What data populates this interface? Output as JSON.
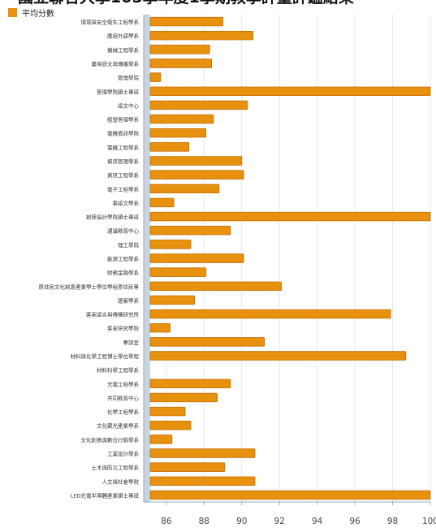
{
  "page": {
    "title": "國立聯合大學105學年度1學期教學評量評鑑結果"
  },
  "colors": {
    "bar_fill": "#E8910F",
    "bar_stroke": "#C06E05",
    "plot_background": "#C8D4DF",
    "grid": "#E3E8EE"
  },
  "chart_data": {
    "type": "bar",
    "orientation": "horizontal",
    "title": "國立聯合大學105學年度1學期教學評量評鑑結果",
    "xlim": [
      84.8,
      100
    ],
    "x_ticks": [
      "86",
      "88",
      "90",
      "92",
      "94",
      "96",
      "98",
      "100"
    ],
    "grid": true,
    "legend": {
      "position": "top-left",
      "entries": [
        "平均分數"
      ]
    },
    "series": [
      {
        "name": "平均分數",
        "categories": [
          "環境與安全衛生工程學系",
          "應用外語學系",
          "機械工程學系",
          "臺灣語文與傳播學系",
          "管理學院",
          "管理學院碩士專班",
          "語文中心",
          "經營管理學系",
          "電機資訊學院",
          "電機工程學系",
          "資訊管理學系",
          "資訊工程學系",
          "電子工程學系",
          "華語文學系",
          "創新設計學院碩士專班",
          "通識教育中心",
          "理工學院",
          "能源工程學系",
          "財務金融學系",
          "原住民文化創意產業學士學位學程原住民專",
          "建築學系",
          "客家語言與傳播研究所",
          "客家研究學院",
          "軍訓室",
          "材料與化學工程博士學位學程",
          "材料科學工程學系",
          "光電工程學系",
          "共同教育中心",
          "化學工程學系",
          "文化觀光產業學系",
          "文化創意與數位行銷學系",
          "工業設計學系",
          "土木與防災工程學系",
          "人文與社會學院",
          "LED光電半導體產業碩士專班"
        ],
        "values": [
          89.0,
          90.6,
          88.3,
          88.4,
          85.7,
          100,
          90.3,
          88.5,
          88.1,
          87.2,
          90.0,
          90.1,
          88.8,
          86.4,
          100,
          89.4,
          87.3,
          90.1,
          88.1,
          92.1,
          87.5,
          97.9,
          86.2,
          91.2,
          98.7,
          84.8,
          89.4,
          88.7,
          87.0,
          87.3,
          86.3,
          90.7,
          89.1,
          90.7,
          100
        ]
      }
    ]
  }
}
